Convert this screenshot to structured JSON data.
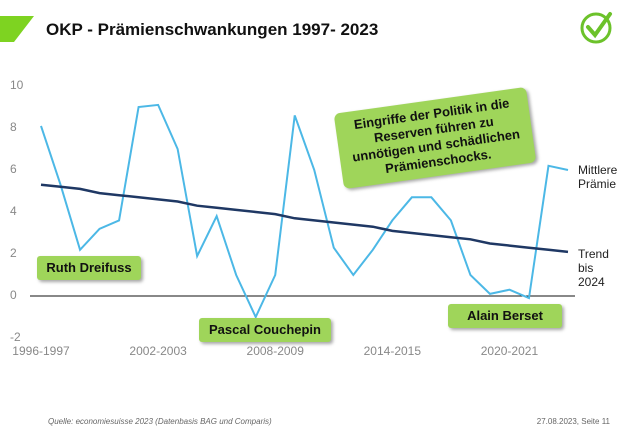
{
  "chart_data": {
    "type": "line",
    "title": "OKP - Prämienschwankungen 1997- 2023",
    "categories": [
      "1996-1997",
      null,
      null,
      null,
      null,
      null,
      "2002-2003",
      null,
      null,
      null,
      null,
      null,
      "2008-2009",
      null,
      null,
      null,
      null,
      null,
      "2014-2015",
      null,
      null,
      null,
      null,
      null,
      "2020-2021",
      null,
      null,
      null
    ],
    "series": [
      {
        "name": "Mittlere Prämie",
        "color": "#4cb8e6",
        "values": [
          8.1,
          5.3,
          2.2,
          3.2,
          3.6,
          9.0,
          9.1,
          7.0,
          1.9,
          3.8,
          1.0,
          -1.0,
          1.0,
          8.6,
          6.0,
          2.3,
          1.0,
          2.2,
          3.6,
          4.7,
          4.7,
          3.6,
          1.0,
          0.1,
          0.3,
          -0.1,
          6.2,
          6.0
        ]
      },
      {
        "name": "Trend bis 2024",
        "color": "#1f3864",
        "values": [
          5.3,
          5.2,
          5.1,
          4.9,
          4.8,
          4.7,
          4.6,
          4.5,
          4.3,
          4.2,
          4.1,
          4.0,
          3.9,
          3.7,
          3.6,
          3.5,
          3.4,
          3.3,
          3.1,
          3.0,
          2.9,
          2.8,
          2.7,
          2.5,
          2.4,
          2.3,
          2.2,
          2.1
        ]
      }
    ],
    "ylim": [
      -2,
      10
    ],
    "yticks": [
      -2,
      0,
      2,
      4,
      6,
      8,
      10
    ],
    "grid": false,
    "annotations": [
      "Ruth Dreifuss",
      "Pascal Couchepin",
      "Alain Berset"
    ],
    "callout": "Eingriffe der Politik in die Reserven führen zu unnötigen und schädlichen Prämienschocks.",
    "source": "Quelle: economiesuisse 2023 (Datenbasis BAG und Comparis)",
    "page_info": "27.08.2023, Seite 11"
  }
}
